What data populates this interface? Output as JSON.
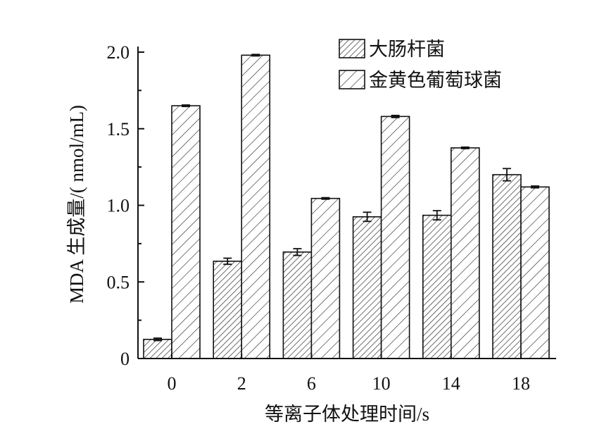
{
  "chart_data": {
    "type": "bar",
    "categories": [
      "0",
      "2",
      "6",
      "10",
      "14",
      "18"
    ],
    "series": [
      {
        "name": "大肠杆菌",
        "values": [
          0.125,
          0.635,
          0.695,
          0.925,
          0.935,
          1.2
        ],
        "errors": [
          0.008,
          0.02,
          0.022,
          0.03,
          0.03,
          0.04
        ],
        "pattern": "dense-hatch"
      },
      {
        "name": "金黄色葡萄球菌",
        "values": [
          1.65,
          1.98,
          1.045,
          1.58,
          1.375,
          1.12
        ],
        "errors": [
          0.005,
          0.005,
          0.005,
          0.007,
          0.005,
          0.006
        ],
        "pattern": "sparse-hatch"
      }
    ],
    "xlabel": "等离子体处理时间/s",
    "ylabel": "MDA 生成量/( nmol/mL)",
    "ylim": [
      0,
      2.0
    ],
    "yticks": [
      0,
      0.5,
      1.0,
      1.5,
      2.0
    ],
    "ytick_labels": [
      "0",
      "0.5",
      "1.0",
      "1.5",
      "2.0"
    ],
    "legend_position": "top-right",
    "grid": false
  }
}
